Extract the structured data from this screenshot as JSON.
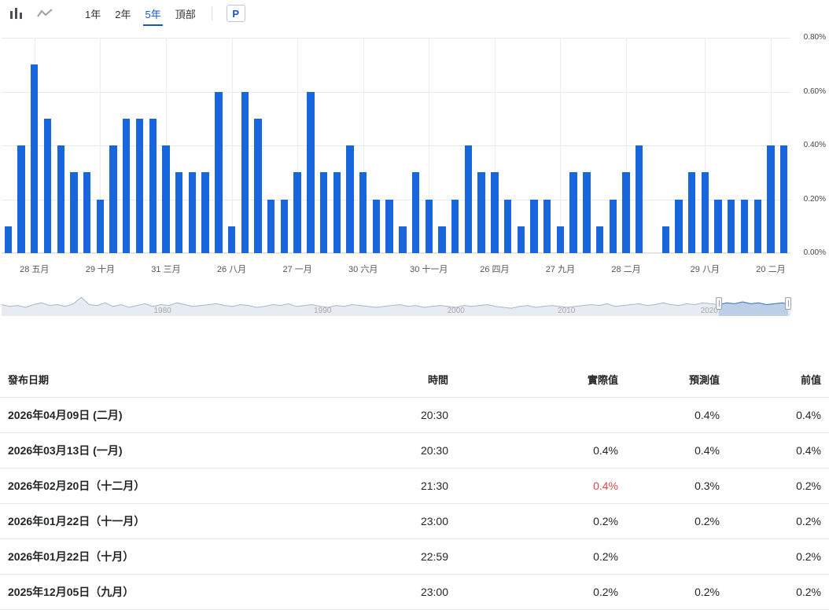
{
  "toolbar": {
    "periods": [
      {
        "label": "1年",
        "active": false
      },
      {
        "label": "2年",
        "active": false
      },
      {
        "label": "5年",
        "active": true
      },
      {
        "label": "頂部",
        "active": false
      }
    ],
    "p_button_label": "P"
  },
  "chart_data": {
    "type": "bar",
    "title": "",
    "xlabel": "",
    "ylabel": "",
    "ymax": 0.8,
    "grid": true,
    "bar_color": "#1766dd",
    "y_ticks": [
      "0.80%",
      "0.60%",
      "0.40%",
      "0.20%",
      "0.00%"
    ],
    "values": [
      0.1,
      0.4,
      0.7,
      0.5,
      0.4,
      0.3,
      0.3,
      0.2,
      0.4,
      0.5,
      0.5,
      0.5,
      0.4,
      0.3,
      0.3,
      0.3,
      0.6,
      0.1,
      0.6,
      0.5,
      0.2,
      0.2,
      0.3,
      0.6,
      0.3,
      0.3,
      0.4,
      0.3,
      0.2,
      0.2,
      0.1,
      0.3,
      0.2,
      0.1,
      0.2,
      0.4,
      0.3,
      0.3,
      0.2,
      0.1,
      0.2,
      0.2,
      0.1,
      0.3,
      0.3,
      0.1,
      0.2,
      0.3,
      0.4,
      0.0,
      0.1,
      0.2,
      0.3,
      0.3,
      0.2,
      0.2,
      0.2,
      0.2,
      0.4,
      0.4
    ],
    "x_tick_labels": [
      "28 五月",
      "29 十月",
      "31 三月",
      "26 八月",
      "27 一月",
      "30 六月",
      "30 十一月",
      "26 四月",
      "27 九月",
      "28 二月",
      "29 八月",
      "20 二月"
    ],
    "x_tick_indices": [
      2,
      7,
      12,
      17,
      22,
      27,
      32,
      37,
      42,
      47,
      53,
      58
    ]
  },
  "navigator": {
    "year_labels": [
      {
        "text": "1980",
        "pct": 20.4
      },
      {
        "text": "1990",
        "pct": 40.7
      },
      {
        "text": "2000",
        "pct": 57.6
      },
      {
        "text": "2010",
        "pct": 71.6
      },
      {
        "text": "2020",
        "pct": 89.7
      }
    ],
    "selection_start_pct": 90.9,
    "selection_end_pct": 99.7,
    "line_color": "#a8b6c8",
    "fill_color": "rgba(176,192,214,0.30)",
    "selected_line_color": "#3a78cc",
    "selected_fill_color": "rgba(90,140,205,0.30)",
    "sparkline": [
      0.5,
      0.4,
      0.45,
      0.35,
      0.5,
      0.6,
      0.45,
      0.5,
      0.4,
      0.55,
      0.9,
      0.5,
      0.45,
      0.6,
      0.4,
      0.5,
      0.35,
      0.45,
      0.55,
      0.4,
      0.5,
      0.45,
      0.6,
      0.5,
      0.4,
      0.45,
      0.5,
      0.55,
      0.45,
      0.4,
      0.5,
      0.45,
      0.35,
      0.4,
      0.5,
      0.45,
      0.55,
      0.4,
      0.45,
      0.5,
      0.4,
      0.35,
      0.45,
      0.4,
      0.5,
      0.45,
      0.4,
      0.35,
      0.4,
      0.45,
      0.5,
      0.4,
      0.45,
      0.35,
      0.4,
      0.45,
      0.4,
      0.35,
      0.45,
      0.4,
      0.45,
      0.5,
      0.4,
      0.35,
      0.3,
      0.4,
      0.45,
      0.35,
      0.4,
      0.45,
      0.4,
      0.35,
      0.4,
      0.45,
      0.5,
      0.45,
      0.55,
      0.4,
      0.45,
      0.5,
      0.55,
      0.45,
      0.5,
      0.6,
      0.5,
      0.45,
      0.55,
      0.5,
      0.6,
      0.55,
      0.5,
      0.6,
      0.55,
      0.65,
      0.55,
      0.6,
      0.5,
      0.55,
      0.6,
      0.5
    ]
  },
  "table": {
    "columns": [
      "發布日期",
      "時間",
      "實際值",
      "預測值",
      "前值"
    ],
    "colors": {
      "actual_red": "#e24545"
    },
    "rows": [
      {
        "date": "2026年04月09日 (二月)",
        "time": "20:30",
        "actual": "",
        "forecast": "0.4%",
        "previous": "0.4%",
        "actual_color": "default"
      },
      {
        "date": "2026年03月13日 (一月)",
        "time": "20:30",
        "actual": "0.4%",
        "forecast": "0.4%",
        "previous": "0.4%",
        "actual_color": "default"
      },
      {
        "date": "2026年02月20日（十二月）",
        "time": "21:30",
        "actual": "0.4%",
        "forecast": "0.3%",
        "previous": "0.2%",
        "actual_color": "red"
      },
      {
        "date": "2026年01月22日（十一月）",
        "time": "23:00",
        "actual": "0.2%",
        "forecast": "0.2%",
        "previous": "0.2%",
        "actual_color": "default"
      },
      {
        "date": "2026年01月22日（十月）",
        "time": "22:59",
        "actual": "0.2%",
        "forecast": "",
        "previous": "0.2%",
        "actual_color": "default"
      },
      {
        "date": "2025年12月05日（九月）",
        "time": "23:00",
        "actual": "0.2%",
        "forecast": "0.2%",
        "previous": "0.2%",
        "actual_color": "default"
      }
    ]
  }
}
